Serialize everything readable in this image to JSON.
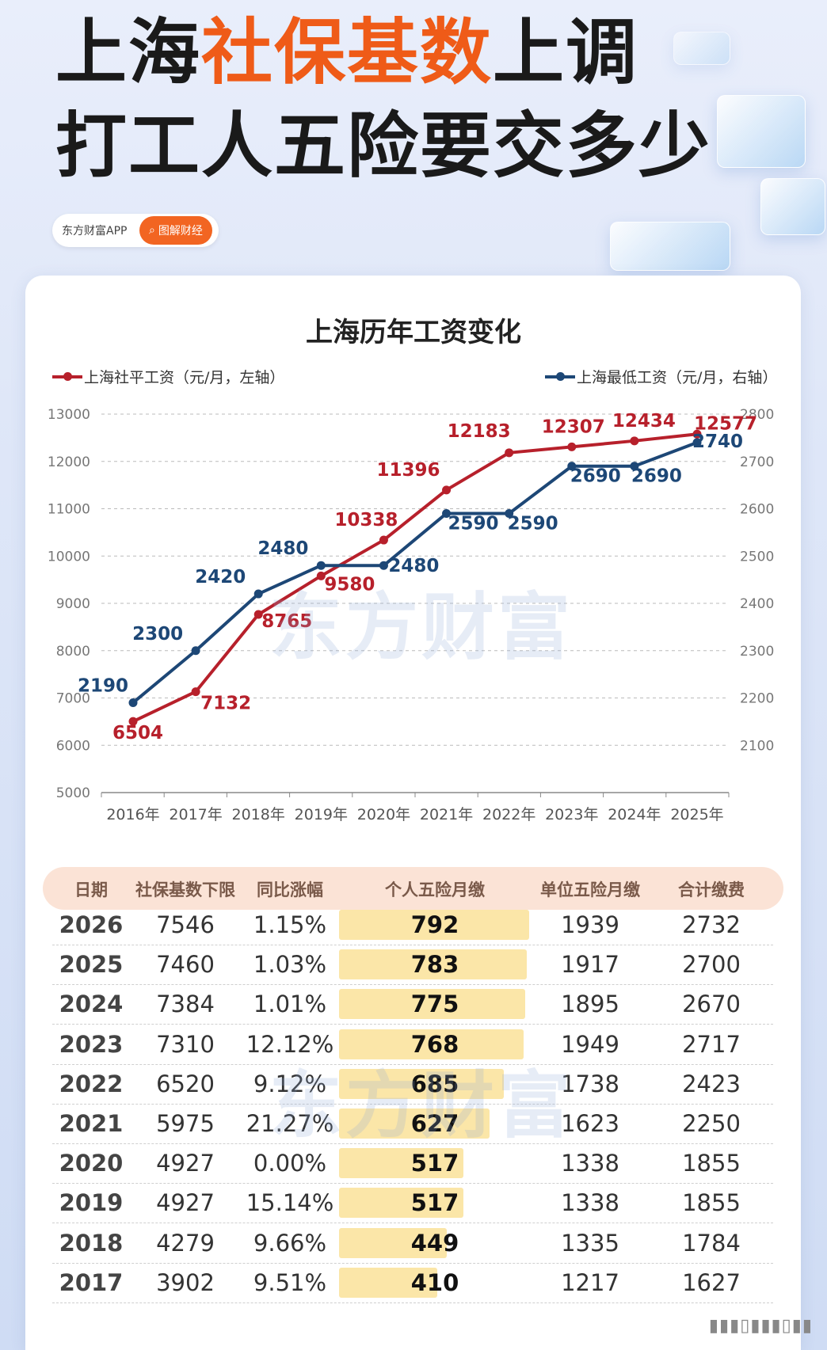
{
  "header": {
    "line1_a": "上海",
    "line1_b": "社保基数",
    "line1_c": "上调",
    "line2": "打工人五险要交多少",
    "source": "东方财富APP",
    "tag": "图解财经"
  },
  "watermark": "东方财富",
  "colors": {
    "red_series": "#b7202b",
    "blue_series": "#1d4776",
    "accent": "#ef5b18"
  },
  "chart_data": {
    "type": "line",
    "title": "上海历年工资变化",
    "categories": [
      "2016年",
      "2017年",
      "2018年",
      "2019年",
      "2020年",
      "2021年",
      "2022年",
      "2023年",
      "2024年",
      "2025年"
    ],
    "series": [
      {
        "name": "上海社平工资（元/月，左轴）",
        "axis": "left",
        "values": [
          6504,
          7132,
          8765,
          9580,
          10338,
          11396,
          12183,
          12307,
          12434,
          12577
        ]
      },
      {
        "name": "上海最低工资（元/月，右轴）",
        "axis": "right",
        "values": [
          2190,
          2300,
          2420,
          2480,
          2480,
          2590,
          2590,
          2690,
          2690,
          2740
        ]
      }
    ],
    "left_axis": {
      "min": 5000,
      "max": 13000,
      "ticks": [
        5000,
        6000,
        7000,
        8000,
        9000,
        10000,
        11000,
        12000,
        13000
      ]
    },
    "right_axis": {
      "min": 2100,
      "max": 2800,
      "ticks": [
        2100,
        2200,
        2300,
        2400,
        2500,
        2600,
        2700,
        2800
      ]
    },
    "grid": true,
    "legend": "top"
  },
  "table": {
    "headers": [
      "日期",
      "社保基数下限",
      "同比涨幅",
      "个人五险月缴",
      "单位五险月缴",
      "合计缴费"
    ],
    "rows": [
      [
        "2026",
        "7546",
        "1.15%",
        "792",
        "1939",
        "2732"
      ],
      [
        "2025",
        "7460",
        "1.03%",
        "783",
        "1917",
        "2700"
      ],
      [
        "2024",
        "7384",
        "1.01%",
        "775",
        "1895",
        "2670"
      ],
      [
        "2023",
        "7310",
        "12.12%",
        "768",
        "1949",
        "2717"
      ],
      [
        "2022",
        "6520",
        "9.12%",
        "685",
        "1738",
        "2423"
      ],
      [
        "2021",
        "5975",
        "21.27%",
        "627",
        "1623",
        "2250"
      ],
      [
        "2020",
        "4927",
        "0.00%",
        "517",
        "1338",
        "1855"
      ],
      [
        "2019",
        "4927",
        "15.14%",
        "517",
        "1338",
        "1855"
      ],
      [
        "2018",
        "4279",
        "9.66%",
        "449",
        "1335",
        "1784"
      ],
      [
        "2017",
        "3902",
        "9.51%",
        "410",
        "1217",
        "1627"
      ]
    ]
  }
}
